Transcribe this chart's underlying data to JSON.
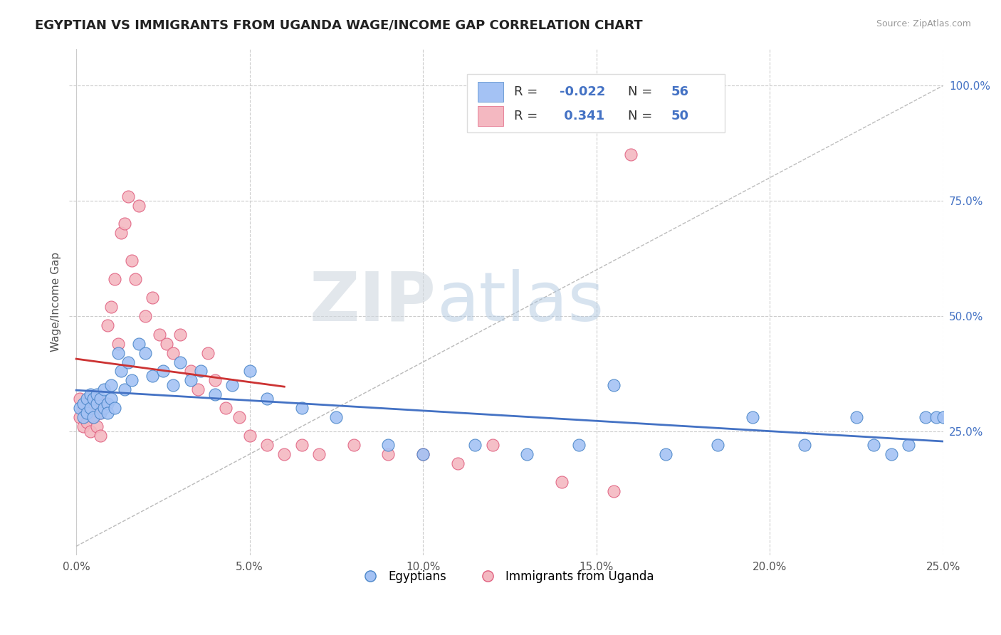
{
  "title": "EGYPTIAN VS IMMIGRANTS FROM UGANDA WAGE/INCOME GAP CORRELATION CHART",
  "source": "Source: ZipAtlas.com",
  "ylabel": "Wage/Income Gap",
  "xlim": [
    -0.002,
    0.25
  ],
  "ylim": [
    -0.02,
    1.08
  ],
  "xticks": [
    0.0,
    0.05,
    0.1,
    0.15,
    0.2,
    0.25
  ],
  "xtick_labels": [
    "0.0%",
    "5.0%",
    "10.0%",
    "15.0%",
    "20.0%",
    "25.0%"
  ],
  "yticks": [
    0.25,
    0.5,
    0.75,
    1.0
  ],
  "ytick_labels": [
    "25.0%",
    "50.0%",
    "75.0%",
    "100.0%"
  ],
  "blue_color": "#a4c2f4",
  "pink_color": "#f4b8c1",
  "blue_edge": "#4a86c8",
  "pink_edge": "#e06080",
  "blue_line_color": "#4472c4",
  "pink_line_color": "#cc3333",
  "blue_R": -0.022,
  "blue_N": 56,
  "pink_R": 0.341,
  "pink_N": 50,
  "legend_label_blue": "Egyptians",
  "legend_label_pink": "Immigrants from Uganda",
  "background_color": "#ffffff",
  "grid_color": "#cccccc",
  "watermark_zip": "ZIP",
  "watermark_atlas": "atlas",
  "blue_scatter_x": [
    0.001,
    0.002,
    0.002,
    0.003,
    0.003,
    0.004,
    0.004,
    0.005,
    0.005,
    0.006,
    0.006,
    0.007,
    0.007,
    0.008,
    0.008,
    0.009,
    0.009,
    0.01,
    0.01,
    0.011,
    0.012,
    0.013,
    0.014,
    0.015,
    0.016,
    0.018,
    0.02,
    0.022,
    0.025,
    0.028,
    0.03,
    0.033,
    0.036,
    0.04,
    0.045,
    0.05,
    0.055,
    0.065,
    0.075,
    0.09,
    0.1,
    0.115,
    0.13,
    0.145,
    0.155,
    0.17,
    0.185,
    0.195,
    0.21,
    0.225,
    0.23,
    0.235,
    0.24,
    0.245,
    0.248,
    0.25
  ],
  "blue_scatter_y": [
    0.3,
    0.31,
    0.28,
    0.32,
    0.29,
    0.33,
    0.3,
    0.32,
    0.28,
    0.31,
    0.33,
    0.29,
    0.32,
    0.3,
    0.34,
    0.31,
    0.29,
    0.32,
    0.35,
    0.3,
    0.42,
    0.38,
    0.34,
    0.4,
    0.36,
    0.44,
    0.42,
    0.37,
    0.38,
    0.35,
    0.4,
    0.36,
    0.38,
    0.33,
    0.35,
    0.38,
    0.32,
    0.3,
    0.28,
    0.22,
    0.2,
    0.22,
    0.2,
    0.22,
    0.35,
    0.2,
    0.22,
    0.28,
    0.22,
    0.28,
    0.22,
    0.2,
    0.22,
    0.28,
    0.28,
    0.28
  ],
  "pink_scatter_x": [
    0.001,
    0.001,
    0.002,
    0.002,
    0.003,
    0.003,
    0.004,
    0.004,
    0.005,
    0.005,
    0.006,
    0.006,
    0.007,
    0.007,
    0.008,
    0.009,
    0.01,
    0.011,
    0.012,
    0.013,
    0.014,
    0.015,
    0.016,
    0.017,
    0.018,
    0.02,
    0.022,
    0.024,
    0.026,
    0.028,
    0.03,
    0.033,
    0.035,
    0.038,
    0.04,
    0.043,
    0.047,
    0.05,
    0.055,
    0.06,
    0.065,
    0.07,
    0.08,
    0.09,
    0.1,
    0.11,
    0.12,
    0.14,
    0.155,
    0.16
  ],
  "pink_scatter_y": [
    0.28,
    0.32,
    0.3,
    0.26,
    0.31,
    0.27,
    0.29,
    0.25,
    0.3,
    0.28,
    0.32,
    0.26,
    0.29,
    0.24,
    0.31,
    0.48,
    0.52,
    0.58,
    0.44,
    0.68,
    0.7,
    0.76,
    0.62,
    0.58,
    0.74,
    0.5,
    0.54,
    0.46,
    0.44,
    0.42,
    0.46,
    0.38,
    0.34,
    0.42,
    0.36,
    0.3,
    0.28,
    0.24,
    0.22,
    0.2,
    0.22,
    0.2,
    0.22,
    0.2,
    0.2,
    0.18,
    0.22,
    0.14,
    0.12,
    0.85
  ]
}
